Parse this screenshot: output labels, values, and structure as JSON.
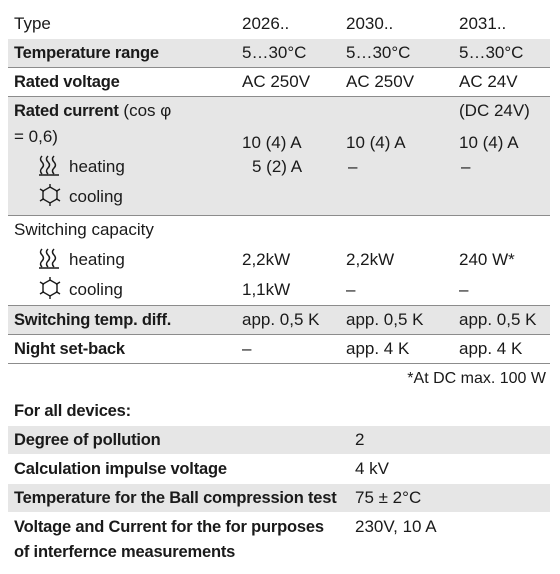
{
  "devices": {
    "header_label": "Type",
    "models": [
      "2026..",
      "2030..",
      "2031.."
    ],
    "rows": {
      "temperature_range": {
        "label": "Temperature range",
        "values": [
          "5…30°C",
          "5…30°C",
          "5…30°C"
        ]
      },
      "rated_voltage": {
        "label": "Rated voltage",
        "values": [
          "AC 250V",
          "AC 250V",
          "AC 24V"
        ]
      },
      "rated_current": {
        "label_bold": "Rated current",
        "label_rest_1": " (cos φ",
        "label_rest_2": "= 0,6)",
        "dc_note": "(DC 24V)",
        "values": [
          "10 (4) A",
          "10 (4) A",
          "10 (4) A"
        ],
        "heating_label": "heating",
        "heating_values": [
          "5 (2) A",
          "–",
          "–"
        ],
        "cooling_label": "cooling"
      },
      "switching_capacity": {
        "label": "Switching capacity",
        "heating_label": "heating",
        "heating_values": [
          "2,2kW",
          "2,2kW",
          "240 W*"
        ],
        "cooling_label": "cooling",
        "cooling_values": [
          "1,1kW",
          "–",
          "–"
        ]
      },
      "switching_temp_diff": {
        "label": "Switching temp. diff.",
        "values": [
          "app. 0,5 K",
          "app. 0,5 K",
          "app. 0,5 K"
        ]
      },
      "night_setback": {
        "label": "Night set-back",
        "values": [
          "–",
          "app. 4 K",
          "app. 4 K"
        ]
      }
    },
    "footnote": "*At DC max. 100 W"
  },
  "general": {
    "title": "For all devices:",
    "rows": [
      {
        "label": "Degree of pollution",
        "value": "2"
      },
      {
        "label": "Calculation impulse voltage",
        "value": "4 kV"
      },
      {
        "label": "Temperature for the Ball compression test",
        "value": "75 ± 2°C"
      },
      {
        "label_line1": "Voltage and Current for the for purposes",
        "label_line2": "of interfernce measurements",
        "value": "230V, 10 A"
      }
    ]
  },
  "icons": {
    "heating": "heating-icon",
    "cooling": "cooling-icon"
  },
  "colors": {
    "shade": "#e6e6e6",
    "rule": "#8c8c8c",
    "text": "#1a1a1a"
  }
}
